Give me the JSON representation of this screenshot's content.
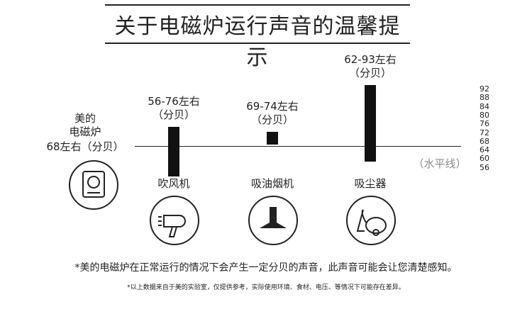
{
  "title": "关于电磁炉运行声音的温馨提示",
  "induction": {
    "line1": "美的",
    "line2": "电磁炉",
    "line3": "68左右（分贝）"
  },
  "horizon_label": "（水平线）",
  "appliances": [
    {
      "name": "吹风机",
      "range_label": "56-76左右",
      "unit": "（分贝）",
      "min": 56,
      "max": 76
    },
    {
      "name": "吸油烟机",
      "range_label": "69-74左右",
      "unit": "（分贝）",
      "min": 69,
      "max": 74
    },
    {
      "name": "吸尘器",
      "range_label": "62-93左右",
      "unit": "（分贝）",
      "min": 62,
      "max": 93
    }
  ],
  "chart_data": {
    "type": "bar",
    "categories": [
      "吹风机",
      "吸油烟机",
      "吸尘器"
    ],
    "baseline": 68,
    "ticks": [
      92,
      88,
      84,
      80,
      76,
      72,
      68,
      64,
      60,
      56
    ]
  },
  "note1": "*美的电磁炉在正常运行的情况下会产生一定分贝的声音，此声音可能会让您清楚感知。",
  "note2": "*以上数据来自于美的实验室，仅提供参考，实际使用环境、食材、电压、等情况下可能存在差异。"
}
